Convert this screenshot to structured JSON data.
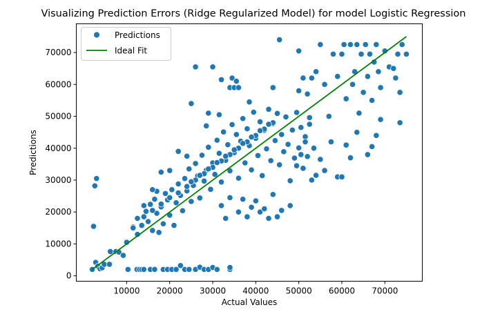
{
  "chart_data": {
    "type": "scatter",
    "title": "Visualizing Prediction Errors (Ridge Regularized Model) for model Logistic Regression",
    "xlabel": "Actual Values",
    "ylabel": "Predictions",
    "xlim": [
      -1700,
      78700
    ],
    "ylim": [
      -1700,
      79000
    ],
    "xticks": [
      10000,
      20000,
      30000,
      40000,
      50000,
      60000,
      70000
    ],
    "yticks": [
      0,
      10000,
      20000,
      30000,
      40000,
      50000,
      60000,
      70000
    ],
    "xtick_labels": [
      "10000",
      "20000",
      "30000",
      "40000",
      "50000",
      "60000",
      "70000"
    ],
    "ytick_labels": [
      "0",
      "10000",
      "20000",
      "30000",
      "40000",
      "50000",
      "60000",
      "70000"
    ],
    "grid": false,
    "legend_position": "top-left",
    "series": [
      {
        "name": "Predictions",
        "kind": "scatter",
        "color": "#1f77b4",
        "edge_color": "#ffffff",
        "points": [
          [
            2000,
            2000
          ],
          [
            2300,
            15500
          ],
          [
            2600,
            28200
          ],
          [
            3000,
            30500
          ],
          [
            2800,
            4200
          ],
          [
            3300,
            3000
          ],
          [
            3800,
            2200
          ],
          [
            4300,
            2500
          ],
          [
            4800,
            3600
          ],
          [
            6000,
            3600
          ],
          [
            6200,
            7600
          ],
          [
            7500,
            7600
          ],
          [
            8200,
            7400
          ],
          [
            9200,
            6400
          ],
          [
            10000,
            10500
          ],
          [
            10300,
            2000
          ],
          [
            11500,
            15300
          ],
          [
            12400,
            2000
          ],
          [
            13000,
            2000
          ],
          [
            13500,
            2000
          ],
          [
            14000,
            2000
          ],
          [
            15500,
            2000
          ],
          [
            16500,
            2000
          ],
          [
            18500,
            2000
          ],
          [
            19500,
            2000
          ],
          [
            20500,
            2000
          ],
          [
            21500,
            2000
          ],
          [
            22500,
            3200
          ],
          [
            23500,
            2000
          ],
          [
            24500,
            2000
          ],
          [
            26000,
            2000
          ],
          [
            27000,
            2700
          ],
          [
            28000,
            2000
          ],
          [
            29000,
            2000
          ],
          [
            30000,
            2600
          ],
          [
            31000,
            2000
          ],
          [
            34000,
            2000
          ],
          [
            34000,
            2600
          ],
          [
            12500,
            18000
          ],
          [
            13500,
            15800
          ],
          [
            14500,
            20200
          ],
          [
            15000,
            17000
          ],
          [
            15500,
            22400
          ],
          [
            16000,
            14200
          ],
          [
            16500,
            24000
          ],
          [
            17000,
            19600
          ],
          [
            17500,
            13600
          ],
          [
            18000,
            21600
          ],
          [
            18500,
            16300
          ],
          [
            19000,
            25800
          ],
          [
            19500,
            23800
          ],
          [
            20000,
            19000
          ],
          [
            20500,
            27000
          ],
          [
            21000,
            15800
          ],
          [
            21500,
            22900
          ],
          [
            22000,
            28800
          ],
          [
            22500,
            25200
          ],
          [
            23000,
            20400
          ],
          [
            23500,
            30500
          ],
          [
            24000,
            26600
          ],
          [
            24500,
            33500
          ],
          [
            25000,
            23300
          ],
          [
            25500,
            28300
          ],
          [
            26000,
            35200
          ],
          [
            26500,
            31300
          ],
          [
            27000,
            24400
          ],
          [
            27500,
            37800
          ],
          [
            28000,
            29700
          ],
          [
            28500,
            33100
          ],
          [
            29000,
            40300
          ],
          [
            29500,
            27100
          ],
          [
            30000,
            35400
          ],
          [
            30500,
            31800
          ],
          [
            31000,
            42500
          ],
          [
            31500,
            38400
          ],
          [
            32000,
            29400
          ],
          [
            32500,
            45100
          ],
          [
            33000,
            36200
          ],
          [
            33500,
            41100
          ],
          [
            34000,
            32900
          ],
          [
            34500,
            47400
          ],
          [
            35000,
            38600
          ],
          [
            35500,
            44300
          ],
          [
            36000,
            30600
          ],
          [
            36500,
            42200
          ],
          [
            37000,
            49300
          ],
          [
            37500,
            35400
          ],
          [
            38000,
            46100
          ],
          [
            38500,
            40800
          ],
          [
            39000,
            33200
          ],
          [
            39500,
            51300
          ],
          [
            40000,
            43100
          ],
          [
            40500,
            37700
          ],
          [
            41000,
            48300
          ],
          [
            41500,
            31400
          ],
          [
            42000,
            45600
          ],
          [
            42500,
            39800
          ],
          [
            43000,
            52200
          ],
          [
            43500,
            36100
          ],
          [
            44000,
            47700
          ],
          [
            44500,
            42400
          ],
          [
            45000,
            50900
          ],
          [
            45500,
            34800
          ],
          [
            46000,
            44300
          ],
          [
            46500,
            38900
          ],
          [
            47000,
            49800
          ],
          [
            47500,
            41200
          ],
          [
            48000,
            29800
          ],
          [
            48500,
            45700
          ],
          [
            49000,
            36900
          ],
          [
            49500,
            51200
          ],
          [
            50000,
            40100
          ],
          [
            50500,
            46500
          ],
          [
            51000,
            33700
          ],
          [
            51500,
            43600
          ],
          [
            52000,
            37400
          ],
          [
            52500,
            49600
          ],
          [
            53000,
            30000
          ],
          [
            22000,
            26000
          ],
          [
            24000,
            28000
          ],
          [
            26000,
            30000
          ],
          [
            28000,
            32000
          ],
          [
            30000,
            34000
          ],
          [
            32000,
            36000
          ],
          [
            34000,
            38000
          ],
          [
            36000,
            40000
          ],
          [
            38000,
            42000
          ],
          [
            40000,
            44000
          ],
          [
            42000,
            46000
          ],
          [
            44000,
            48000
          ],
          [
            25000,
            29500
          ],
          [
            27000,
            31500
          ],
          [
            29000,
            33500
          ],
          [
            31000,
            35500
          ],
          [
            33000,
            37500
          ],
          [
            35000,
            39500
          ],
          [
            37000,
            41500
          ],
          [
            39000,
            43500
          ],
          [
            41000,
            45500
          ],
          [
            43000,
            47500
          ],
          [
            18000,
            22500
          ],
          [
            20000,
            24500
          ],
          [
            16000,
            20500
          ],
          [
            14000,
            18500
          ],
          [
            26000,
            65500
          ],
          [
            30000,
            65500
          ],
          [
            32000,
            61500
          ],
          [
            34000,
            59000
          ],
          [
            34500,
            62000
          ],
          [
            35000,
            59000
          ],
          [
            35500,
            61000
          ],
          [
            36000,
            59000
          ],
          [
            38500,
            54500
          ],
          [
            44000,
            59000
          ],
          [
            45500,
            74000
          ],
          [
            50000,
            70500
          ],
          [
            51000,
            62000
          ],
          [
            25000,
            54000
          ],
          [
            29000,
            51000
          ],
          [
            31500,
            50500
          ],
          [
            28500,
            47000
          ],
          [
            50000,
            58000
          ],
          [
            52000,
            57000
          ],
          [
            53000,
            62000
          ],
          [
            54000,
            64000
          ],
          [
            55000,
            72500
          ],
          [
            56000,
            60000
          ],
          [
            57000,
            50000
          ],
          [
            58000,
            69500
          ],
          [
            59000,
            62500
          ],
          [
            60000,
            69500
          ],
          [
            60500,
            72500
          ],
          [
            61000,
            55500
          ],
          [
            62000,
            72500
          ],
          [
            62500,
            60000
          ],
          [
            63000,
            64000
          ],
          [
            63500,
            72500
          ],
          [
            64000,
            51000
          ],
          [
            64500,
            69500
          ],
          [
            65000,
            57500
          ],
          [
            65500,
            72500
          ],
          [
            66000,
            62500
          ],
          [
            66500,
            69500
          ],
          [
            67000,
            55000
          ],
          [
            67500,
            67000
          ],
          [
            68000,
            72500
          ],
          [
            68500,
            64000
          ],
          [
            69000,
            59000
          ],
          [
            70000,
            70500
          ],
          [
            71000,
            65500
          ],
          [
            72000,
            65000
          ],
          [
            72500,
            62000
          ],
          [
            73000,
            69500
          ],
          [
            73500,
            48000
          ],
          [
            74000,
            72500
          ],
          [
            75000,
            69500
          ],
          [
            73500,
            57500
          ],
          [
            57500,
            42000
          ],
          [
            59000,
            31000
          ],
          [
            60000,
            31000
          ],
          [
            61000,
            41000
          ],
          [
            62000,
            37000
          ],
          [
            63500,
            45000
          ],
          [
            66000,
            38000
          ],
          [
            67000,
            40500
          ],
          [
            68000,
            44000
          ],
          [
            69000,
            49000
          ],
          [
            56000,
            33000
          ],
          [
            55000,
            36500
          ],
          [
            54000,
            31500
          ],
          [
            53500,
            40000
          ],
          [
            52500,
            47500
          ],
          [
            51500,
            42000
          ],
          [
            50500,
            38000
          ],
          [
            49500,
            34500
          ],
          [
            32000,
            22000
          ],
          [
            33000,
            18000
          ],
          [
            34000,
            24500
          ],
          [
            36000,
            20000
          ],
          [
            37000,
            24000
          ],
          [
            38000,
            18500
          ],
          [
            39000,
            21500
          ],
          [
            40000,
            23500
          ],
          [
            41000,
            20000
          ],
          [
            42000,
            21000
          ],
          [
            43000,
            18000
          ],
          [
            44000,
            25500
          ],
          [
            45000,
            18500
          ],
          [
            46000,
            20500
          ],
          [
            48000,
            22000
          ],
          [
            24000,
            37500
          ],
          [
            22000,
            39000
          ],
          [
            20000,
            33000
          ],
          [
            18000,
            32500
          ],
          [
            17000,
            26500
          ],
          [
            16000,
            27000
          ],
          [
            14000,
            22000
          ],
          [
            12500,
            13000
          ],
          [
            11500,
            15000
          ]
        ]
      },
      {
        "name": "Ideal Fit",
        "kind": "line",
        "color": "#008000",
        "x": [
          2000,
          75000
        ],
        "y": [
          2000,
          75000
        ]
      }
    ]
  }
}
